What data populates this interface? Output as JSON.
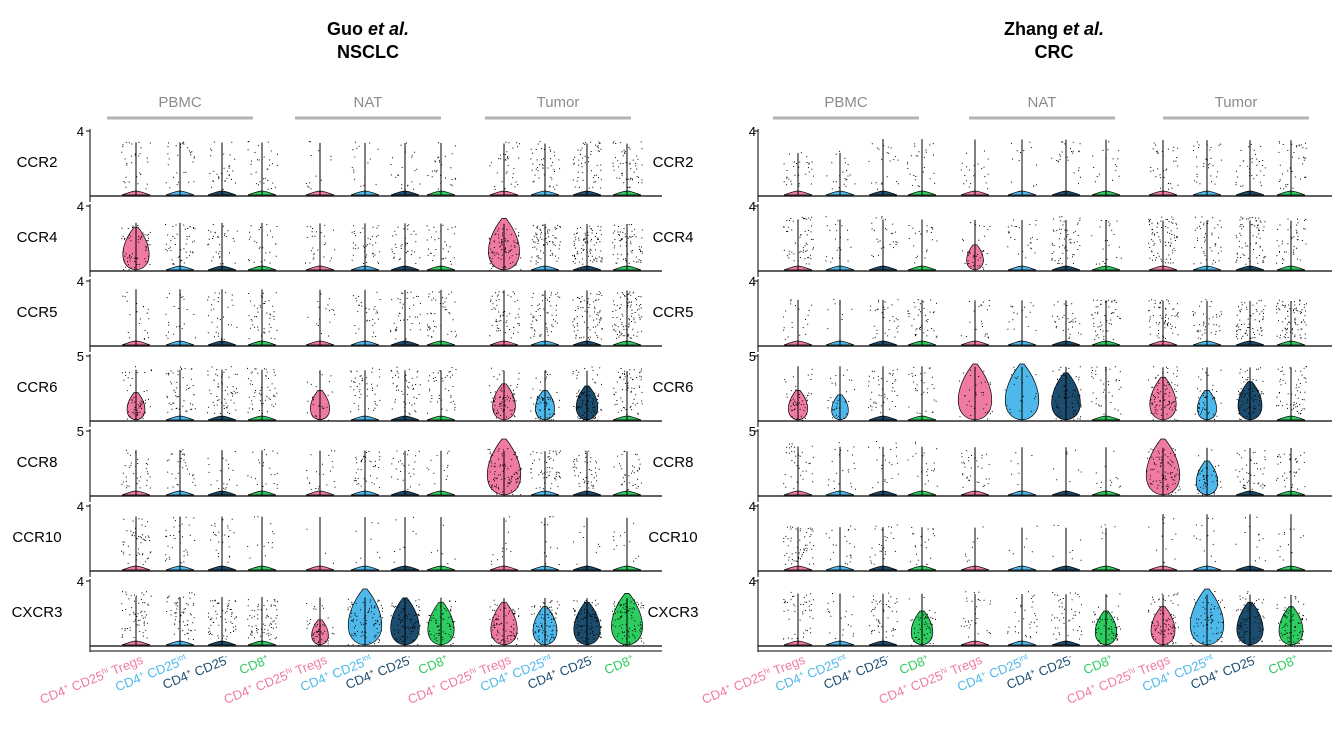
{
  "chart_data": [
    {
      "type": "violin",
      "title_author": "Guo",
      "title_etal": "et al.",
      "title_dataset": "NSCLC",
      "tissues": [
        "PBMC",
        "NAT",
        "Tumor"
      ],
      "genes": [
        "CCR2",
        "CCR4",
        "CCR5",
        "CCR6",
        "CCR8",
        "CCR10",
        "CXCR3"
      ],
      "ymax_labels": [
        "4",
        "4",
        "4",
        "5",
        "5",
        "4",
        "4"
      ],
      "ymax": [
        4,
        4,
        4,
        5,
        5,
        4,
        4
      ],
      "groups": [
        {
          "base": "CD4",
          "sup1": "+",
          "mid": " CD25",
          "sup2": "hi",
          "suffix": " Tregs",
          "color": "#f07ba0"
        },
        {
          "base": "CD4",
          "sup1": "+",
          "mid": " CD25",
          "sup2": "int",
          "suffix": "",
          "color": "#4fb8ea"
        },
        {
          "base": "CD4",
          "sup1": "+",
          "mid": " CD25",
          "sup2": "-",
          "suffix": "",
          "color": "#1c4c6e"
        },
        {
          "base": "CD8",
          "sup1": "+",
          "mid": "",
          "sup2": "",
          "suffix": "",
          "color": "#2ecc60"
        }
      ],
      "violin_width": [
        [
          [
            0,
            0,
            0,
            0
          ],
          [
            0,
            0,
            0,
            0
          ],
          [
            0,
            0,
            0,
            0
          ]
        ],
        [
          [
            0.7,
            0,
            0,
            0
          ],
          [
            0,
            0,
            0,
            0
          ],
          [
            0.9,
            0,
            0,
            0
          ]
        ],
        [
          [
            0,
            0,
            0,
            0
          ],
          [
            0,
            0,
            0,
            0
          ],
          [
            0,
            0,
            0,
            0
          ]
        ],
        [
          [
            0.35,
            0,
            0,
            0
          ],
          [
            0.4,
            0,
            0,
            0
          ],
          [
            0.55,
            0.4,
            0.5,
            0
          ]
        ],
        [
          [
            0,
            0,
            0,
            0
          ],
          [
            0,
            0,
            0,
            0
          ],
          [
            1,
            0,
            0,
            0
          ]
        ],
        [
          [
            0,
            0,
            0,
            0
          ],
          [
            0,
            0,
            0,
            0
          ],
          [
            0,
            0,
            0,
            0
          ]
        ],
        [
          [
            0,
            0,
            0,
            0
          ],
          [
            0.3,
            1,
            0.8,
            0.7
          ],
          [
            0.7,
            0.6,
            0.7,
            0.9
          ]
        ]
      ],
      "dot_density": [
        [
          [
            0.3,
            0.3,
            0.3,
            0.3
          ],
          [
            0.1,
            0.15,
            0.2,
            0.25
          ],
          [
            0.35,
            0.45,
            0.55,
            0.55
          ]
        ],
        [
          [
            0.7,
            0.45,
            0.3,
            0.25
          ],
          [
            0.25,
            0.4,
            0.35,
            0.3
          ],
          [
            0.9,
            0.8,
            0.9,
            0.7
          ]
        ],
        [
          [
            0.2,
            0.2,
            0.3,
            0.45
          ],
          [
            0.15,
            0.3,
            0.4,
            0.45
          ],
          [
            0.6,
            0.6,
            0.8,
            1
          ]
        ],
        [
          [
            0.6,
            0.55,
            0.6,
            0.55
          ],
          [
            0.25,
            0.45,
            0.5,
            0.4
          ],
          [
            0.8,
            0.7,
            0.9,
            0.7
          ]
        ],
        [
          [
            0.35,
            0.3,
            0.2,
            0.2
          ],
          [
            0.2,
            0.4,
            0.25,
            0.1
          ],
          [
            1,
            0.6,
            0.45,
            0.35
          ]
        ],
        [
          [
            0.5,
            0.35,
            0.25,
            0.1
          ],
          [
            0,
            0.05,
            0.05,
            0.03
          ],
          [
            0.1,
            0.1,
            0.05,
            0.1
          ]
        ],
        [
          [
            0.6,
            0.6,
            0.65,
            0.75
          ],
          [
            0.5,
            0.9,
            0.85,
            0.7
          ],
          [
            0.9,
            0.9,
            1,
            1
          ]
        ]
      ]
    },
    {
      "type": "violin",
      "title_author": "Zhang",
      "title_etal": "et al.",
      "title_dataset": "CRC",
      "tissues": [
        "PBMC",
        "NAT",
        "Tumor"
      ],
      "genes": [
        "CCR2",
        "CCR4",
        "CCR5",
        "CCR6",
        "CCR8",
        "CCR10",
        "CXCR3"
      ],
      "ymax_labels": [
        "4",
        "4",
        "4",
        "5",
        "5",
        "4",
        "4"
      ],
      "ymax": [
        4,
        4,
        4,
        5,
        5,
        4,
        4
      ],
      "groups": [
        {
          "base": "CD4",
          "sup1": "+",
          "mid": " CD25",
          "sup2": "hi",
          "suffix": " Tregs",
          "color": "#f07ba0"
        },
        {
          "base": "CD4",
          "sup1": "+",
          "mid": " CD25",
          "sup2": "int",
          "suffix": "",
          "color": "#4fb8ea"
        },
        {
          "base": "CD4",
          "sup1": "+",
          "mid": " CD25",
          "sup2": "-",
          "suffix": "",
          "color": "#1c4c6e"
        },
        {
          "base": "CD8",
          "sup1": "+",
          "mid": "",
          "sup2": "",
          "suffix": "",
          "color": "#2ecc60"
        }
      ],
      "violin_width": [
        [
          [
            0,
            0,
            0,
            0
          ],
          [
            0,
            0,
            0,
            0
          ],
          [
            0,
            0,
            0,
            0
          ]
        ],
        [
          [
            0,
            0,
            0,
            0
          ],
          [
            0.3,
            0,
            0,
            0
          ],
          [
            0,
            0,
            0,
            0
          ]
        ],
        [
          [
            0,
            0,
            0,
            0
          ],
          [
            0,
            0,
            0,
            0
          ],
          [
            0,
            0,
            0,
            0
          ]
        ],
        [
          [
            0.4,
            0.3,
            0,
            0
          ],
          [
            1,
            1,
            0.8,
            0
          ],
          [
            0.7,
            0.4,
            0.6,
            0
          ]
        ],
        [
          [
            0,
            0,
            0,
            0
          ],
          [
            0,
            0,
            0,
            0
          ],
          [
            1,
            0.5,
            0,
            0
          ]
        ],
        [
          [
            0,
            0,
            0,
            0
          ],
          [
            0,
            0,
            0,
            0
          ],
          [
            0,
            0,
            0,
            0
          ]
        ],
        [
          [
            0,
            0,
            0,
            0.5
          ],
          [
            0,
            0,
            0,
            0.5
          ],
          [
            0.6,
            1,
            0.7,
            0.6
          ]
        ]
      ],
      "dot_density": [
        [
          [
            0.3,
            0.2,
            0.2,
            0.25
          ],
          [
            0.2,
            0.1,
            0.25,
            0.15
          ],
          [
            0.35,
            0.3,
            0.35,
            0.4
          ]
        ],
        [
          [
            0.6,
            0.2,
            0.25,
            0.2
          ],
          [
            0.45,
            0.25,
            0.6,
            0.2
          ],
          [
            0.8,
            0.45,
            0.75,
            0.45
          ]
        ],
        [
          [
            0.2,
            0.05,
            0.3,
            0.4
          ],
          [
            0.2,
            0.15,
            0.3,
            0.55
          ],
          [
            0.65,
            0.4,
            0.7,
            0.9
          ]
        ],
        [
          [
            0.55,
            0.3,
            0.45,
            0.3
          ],
          [
            0.3,
            0.2,
            0.7,
            0.4
          ],
          [
            0.9,
            0.4,
            0.9,
            0.6
          ]
        ],
        [
          [
            0.35,
            0.2,
            0.2,
            0.2
          ],
          [
            0.35,
            0.05,
            0.05,
            0.1
          ],
          [
            1,
            0.5,
            0.45,
            0.35
          ]
        ],
        [
          [
            0.6,
            0.2,
            0.25,
            0.2
          ],
          [
            0.05,
            0.03,
            0.05,
            0.03
          ],
          [
            0.1,
            0.1,
            0.1,
            0.1
          ]
        ],
        [
          [
            0.45,
            0.2,
            0.5,
            0.5
          ],
          [
            0.3,
            0.3,
            0.45,
            0.6
          ],
          [
            0.9,
            0.7,
            0.8,
            0.8
          ]
        ]
      ]
    }
  ]
}
